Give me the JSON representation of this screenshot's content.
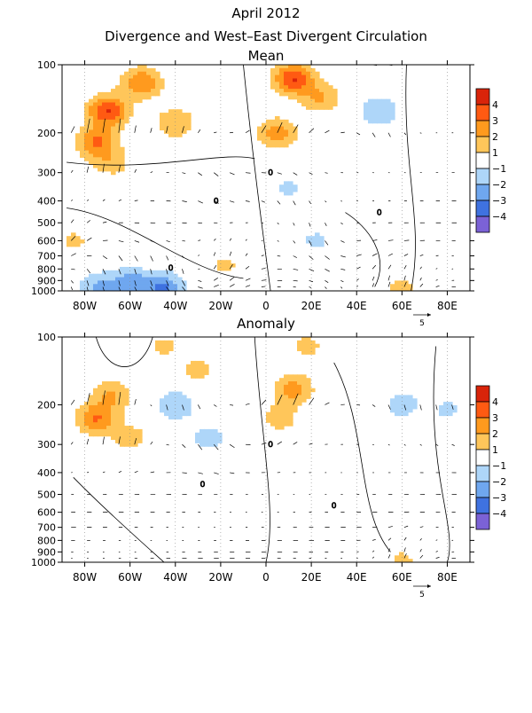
{
  "title_line1": "April 2012",
  "title_line2": "Divergence and West–East Divergent Circulation",
  "legend_colors": [
    "#7b62d6",
    "#3f72e0",
    "#6fa7ef",
    "#aed6f9",
    "#ffffff",
    "#ffc65a",
    "#ff9a1e",
    "#ff5a12",
    "#d9240a"
  ],
  "legend_labels": [
    "4",
    "3",
    "2",
    "1",
    "−1",
    "−2",
    "−3",
    "−4"
  ],
  "chart_data": [
    {
      "type": "heatmap",
      "title": "Mean",
      "x_ticks": [
        "80W",
        "60W",
        "40W",
        "20W",
        "0",
        "20E",
        "40E",
        "60E",
        "80E"
      ],
      "x_tick_values": [
        -80,
        -60,
        -40,
        -20,
        0,
        20,
        40,
        60,
        80
      ],
      "xlim": [
        -90,
        90
      ],
      "y_ticks": [
        100,
        200,
        300,
        400,
        500,
        600,
        700,
        800,
        900,
        1000
      ],
      "ylim": [
        1000,
        100
      ],
      "reference_vector_label": "5",
      "contour_label": "0",
      "blobs": [
        {
          "lon": -70,
          "p": 160,
          "v": 4
        },
        {
          "lon": -55,
          "p": 120,
          "v": 3
        },
        {
          "lon": -75,
          "p": 220,
          "v": 3
        },
        {
          "lon": -40,
          "p": 180,
          "v": 2
        },
        {
          "lon": -68,
          "p": 270,
          "v": 1.5
        },
        {
          "lon": 12,
          "p": 115,
          "v": 4
        },
        {
          "lon": 5,
          "p": 200,
          "v": 2.5
        },
        {
          "lon": 24,
          "p": 140,
          "v": 2
        },
        {
          "lon": -85,
          "p": 600,
          "v": 1.2
        },
        {
          "lon": -18,
          "p": 770,
          "v": 1.2
        },
        {
          "lon": 42,
          "p": 870,
          "v": 1.2
        },
        {
          "lon": 60,
          "p": 960,
          "v": 1.2
        },
        {
          "lon": 50,
          "p": 160,
          "v": -2
        },
        {
          "lon": 10,
          "p": 350,
          "v": -1.2
        },
        {
          "lon": 22,
          "p": 600,
          "v": -1.2
        },
        {
          "lon": -25,
          "p": 330,
          "v": -1
        },
        {
          "lon": -60,
          "p": 920,
          "v": -2.5
        },
        {
          "lon": -45,
          "p": 970,
          "v": -3
        },
        {
          "lon": -75,
          "p": 960,
          "v": -2
        },
        {
          "lon": 35,
          "p": 960,
          "v": -1
        }
      ]
    },
    {
      "type": "heatmap",
      "title": "Anomaly",
      "x_ticks": [
        "80W",
        "60W",
        "40W",
        "20W",
        "0",
        "20E",
        "40E",
        "60E",
        "80E"
      ],
      "x_tick_values": [
        -80,
        -60,
        -40,
        -20,
        0,
        20,
        40,
        60,
        80
      ],
      "xlim": [
        -90,
        90
      ],
      "y_ticks": [
        100,
        200,
        300,
        400,
        500,
        600,
        700,
        800,
        900,
        1000
      ],
      "ylim": [
        1000,
        100
      ],
      "reference_vector_label": "5",
      "contour_label": "0",
      "blobs": [
        {
          "lon": -75,
          "p": 230,
          "v": 3
        },
        {
          "lon": -68,
          "p": 180,
          "v": 2
        },
        {
          "lon": -60,
          "p": 280,
          "v": 1.5
        },
        {
          "lon": 12,
          "p": 170,
          "v": 2.5
        },
        {
          "lon": 6,
          "p": 230,
          "v": 1.5
        },
        {
          "lon": -30,
          "p": 140,
          "v": 1.3
        },
        {
          "lon": -45,
          "p": 110,
          "v": 1.2
        },
        {
          "lon": 18,
          "p": 110,
          "v": 1.3
        },
        {
          "lon": -40,
          "p": 200,
          "v": -2
        },
        {
          "lon": -25,
          "p": 280,
          "v": -1.5
        },
        {
          "lon": 60,
          "p": 200,
          "v": -1.5
        },
        {
          "lon": 80,
          "p": 210,
          "v": -1.2
        },
        {
          "lon": 60,
          "p": 980,
          "v": 1.2
        }
      ]
    }
  ]
}
